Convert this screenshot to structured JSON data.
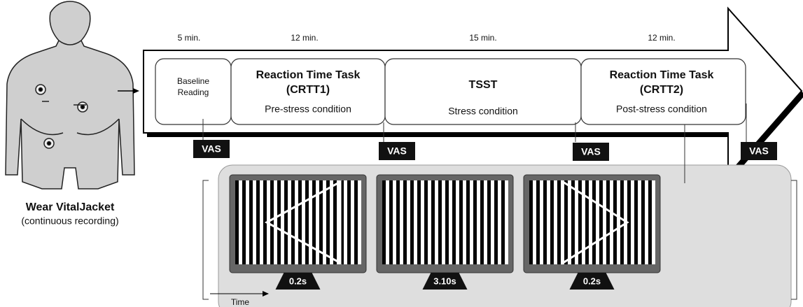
{
  "person": {
    "label": "Wear VitalJacket",
    "sublabel": "(continuous recording)"
  },
  "phases": [
    {
      "duration": "5 min.",
      "lines": [
        "Baseline",
        "Reading"
      ]
    },
    {
      "duration": "12 min.",
      "title": "Reaction Time Task",
      "code": "(CRTT1)",
      "condition": "Pre-stress condition"
    },
    {
      "duration": "15 min.",
      "title": "TSST",
      "condition": "Stress condition"
    },
    {
      "duration": "12 min.",
      "title": "Reaction Time Task",
      "code": "(CRTT2)",
      "condition": "Post-stress condition"
    }
  ],
  "vas": [
    "VAS",
    "VAS",
    "VAS",
    "VAS"
  ],
  "monitors": [
    "0.2s",
    "3.10s",
    "0.2s"
  ],
  "time_label": "Time"
}
